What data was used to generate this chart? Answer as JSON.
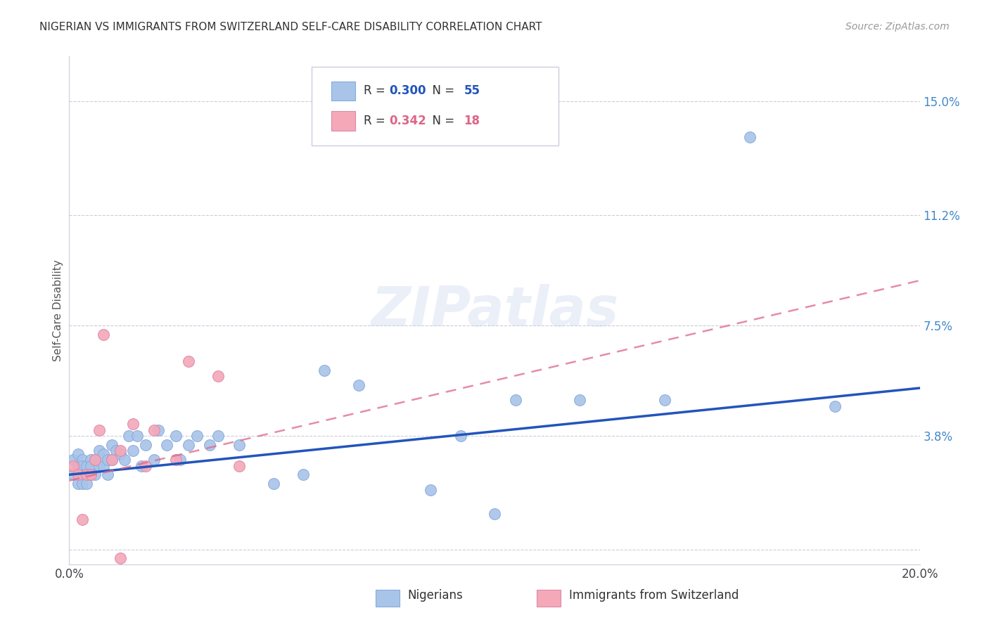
{
  "title": "NIGERIAN VS IMMIGRANTS FROM SWITZERLAND SELF-CARE DISABILITY CORRELATION CHART",
  "source": "Source: ZipAtlas.com",
  "ylabel": "Self-Care Disability",
  "xlim": [
    0.0,
    0.2
  ],
  "ylim": [
    -0.005,
    0.165
  ],
  "yticks": [
    0.0,
    0.038,
    0.075,
    0.112,
    0.15
  ],
  "ytick_labels": [
    "",
    "3.8%",
    "7.5%",
    "11.2%",
    "15.0%"
  ],
  "xticks": [
    0.0,
    0.05,
    0.1,
    0.15,
    0.2
  ],
  "xtick_labels": [
    "0.0%",
    "",
    "",
    "",
    "20.0%"
  ],
  "nigerian_R": 0.3,
  "nigerian_N": 55,
  "swiss_R": 0.342,
  "swiss_N": 18,
  "nigerian_color": "#a8c4e8",
  "swiss_color": "#f4a8b8",
  "nigerian_line_color": "#2255bb",
  "swiss_line_color": "#dd6688",
  "legend_label_1": "Nigerians",
  "legend_label_2": "Immigrants from Switzerland",
  "watermark": "ZIPatlas",
  "nigerian_x": [
    0.001,
    0.001,
    0.002,
    0.002,
    0.002,
    0.003,
    0.003,
    0.003,
    0.003,
    0.004,
    0.004,
    0.004,
    0.005,
    0.005,
    0.005,
    0.006,
    0.006,
    0.007,
    0.007,
    0.008,
    0.008,
    0.009,
    0.009,
    0.01,
    0.01,
    0.011,
    0.012,
    0.013,
    0.014,
    0.015,
    0.016,
    0.017,
    0.018,
    0.02,
    0.021,
    0.023,
    0.025,
    0.026,
    0.028,
    0.03,
    0.033,
    0.035,
    0.04,
    0.048,
    0.055,
    0.06,
    0.068,
    0.085,
    0.092,
    0.1,
    0.105,
    0.12,
    0.14,
    0.16,
    0.18
  ],
  "nigerian_y": [
    0.03,
    0.025,
    0.028,
    0.022,
    0.032,
    0.03,
    0.025,
    0.022,
    0.028,
    0.028,
    0.025,
    0.022,
    0.03,
    0.028,
    0.025,
    0.03,
    0.025,
    0.033,
    0.028,
    0.032,
    0.028,
    0.03,
    0.025,
    0.035,
    0.03,
    0.033,
    0.032,
    0.03,
    0.038,
    0.033,
    0.038,
    0.028,
    0.035,
    0.03,
    0.04,
    0.035,
    0.038,
    0.03,
    0.035,
    0.038,
    0.035,
    0.038,
    0.035,
    0.022,
    0.025,
    0.06,
    0.055,
    0.02,
    0.038,
    0.012,
    0.05,
    0.05,
    0.05,
    0.138,
    0.048
  ],
  "swiss_x": [
    0.001,
    0.002,
    0.003,
    0.004,
    0.005,
    0.006,
    0.007,
    0.008,
    0.01,
    0.012,
    0.015,
    0.018,
    0.02,
    0.028,
    0.035,
    0.04,
    0.012,
    0.025
  ],
  "swiss_y": [
    0.028,
    0.025,
    0.01,
    0.025,
    0.025,
    0.03,
    0.04,
    0.072,
    0.03,
    0.033,
    0.042,
    0.028,
    0.04,
    0.063,
    0.058,
    0.028,
    -0.003,
    0.03
  ]
}
